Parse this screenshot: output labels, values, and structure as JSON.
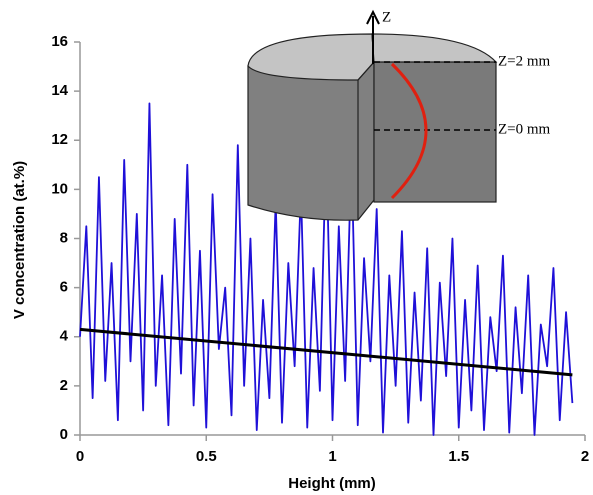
{
  "chart_data": {
    "type": "line",
    "xlabel": "Height (mm)",
    "ylabel": "V concentration  (at.%)",
    "xlim": [
      0,
      2
    ],
    "ylim": [
      0,
      16
    ],
    "xticks": [
      0,
      0.5,
      1,
      1.5,
      2
    ],
    "yticks": [
      0,
      2,
      4,
      6,
      8,
      10,
      12,
      14,
      16
    ],
    "series": [
      {
        "color": "#1f10d8",
        "x": [
          0,
          0.025,
          0.05,
          0.075,
          0.1,
          0.125,
          0.15,
          0.175,
          0.2,
          0.225,
          0.25,
          0.275,
          0.3,
          0.325,
          0.35,
          0.375,
          0.4,
          0.425,
          0.45,
          0.475,
          0.5,
          0.525,
          0.55,
          0.575,
          0.6,
          0.625,
          0.65,
          0.675,
          0.7,
          0.725,
          0.75,
          0.775,
          0.8,
          0.825,
          0.85,
          0.875,
          0.9,
          0.925,
          0.95,
          0.975,
          1,
          1.025,
          1.05,
          1.075,
          1.1,
          1.125,
          1.15,
          1.175,
          1.2,
          1.225,
          1.25,
          1.275,
          1.3,
          1.325,
          1.35,
          1.375,
          1.4,
          1.425,
          1.45,
          1.475,
          1.5,
          1.525,
          1.55,
          1.575,
          1.6,
          1.625,
          1.65,
          1.675,
          1.7,
          1.725,
          1.75,
          1.775,
          1.8,
          1.825,
          1.85,
          1.875,
          1.9,
          1.925,
          1.95
        ],
        "values": [
          4,
          8.5,
          1.5,
          10.5,
          2.2,
          7,
          0.6,
          11.2,
          3,
          9,
          1,
          13.5,
          2,
          6.5,
          0.4,
          8.8,
          2.5,
          11,
          1.2,
          7.5,
          0.3,
          9.8,
          3.5,
          6,
          0.8,
          11.8,
          2,
          8,
          0.2,
          5.5,
          1.5,
          9.5,
          0.5,
          7,
          2.8,
          10,
          0.3,
          6.8,
          1.8,
          12,
          0.6,
          8.5,
          2.2,
          11.5,
          0.4,
          7.2,
          3,
          9.2,
          0.1,
          6.5,
          2,
          8.3,
          0.5,
          5.8,
          1.4,
          7.6,
          0,
          6.2,
          2.4,
          8,
          0.3,
          5.5,
          1,
          6.9,
          0.2,
          4.8,
          2.6,
          7.3,
          0.1,
          5.2,
          1.7,
          6.5,
          0,
          4.5,
          2.8,
          6.8,
          0.6,
          5,
          1.3
        ]
      },
      {
        "color": "#000000",
        "x": [
          0,
          1.95
        ],
        "values": [
          4.3,
          2.45
        ]
      }
    ],
    "inset": {
      "axis": "Z",
      "top_label": "Z=2 mm",
      "mid_label": "Z=0 mm"
    }
  }
}
